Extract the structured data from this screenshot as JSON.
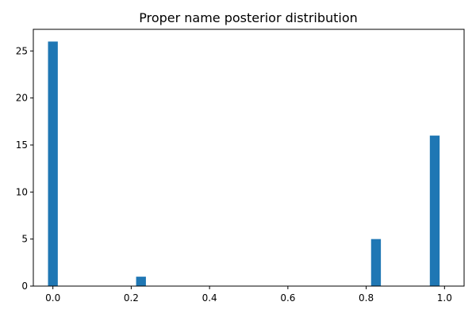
{
  "chart_data": {
    "type": "bar",
    "title": "Proper name posterior distribution",
    "xlabel": "",
    "ylabel": "",
    "bar_color": "#1f77b4",
    "bin_width": 0.025,
    "x": [
      0.0,
      0.225,
      0.825,
      0.975
    ],
    "values": [
      26,
      1,
      5,
      16
    ],
    "xlim": [
      -0.05,
      1.05
    ],
    "ylim": [
      0,
      27.3
    ],
    "xticks": [
      0.0,
      0.2,
      0.4,
      0.6,
      0.8,
      1.0
    ],
    "xtick_labels": [
      "0.0",
      "0.2",
      "0.4",
      "0.6",
      "0.8",
      "1.0"
    ],
    "yticks": [
      0,
      5,
      10,
      15,
      20,
      25
    ],
    "ytick_labels": [
      "0",
      "5",
      "10",
      "15",
      "20",
      "25"
    ],
    "grid": false,
    "legend": "none"
  }
}
